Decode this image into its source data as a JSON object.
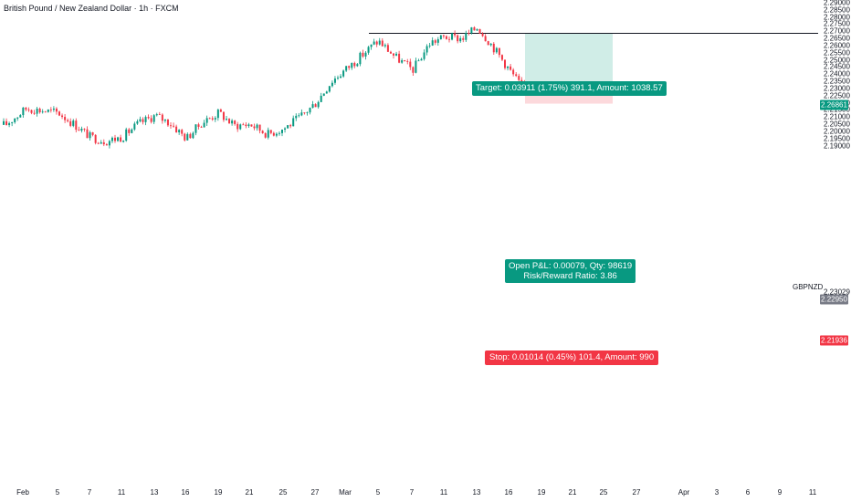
{
  "chart": {
    "title": "British Pound / New Zealand Dollar · 1h · FXCM",
    "symbol": "GBPNZD"
  },
  "colors": {
    "up": "#089981",
    "down": "#f23645",
    "target_zone": "#d0ede7",
    "stop_zone": "#fcd9dc",
    "target_label": "#089981",
    "stop_label": "#f23645",
    "current_price_tag": "#787b86",
    "line": "#131722"
  },
  "price_axis": {
    "ticks": [
      "2.29000",
      "2.28500",
      "2.28000",
      "2.27500",
      "2.27000",
      "2.26500",
      "2.26000",
      "2.25500",
      "2.25000",
      "2.24500",
      "2.24000",
      "2.23500",
      "2.23000",
      "2.22500",
      "2.22000",
      "2.21500",
      "2.21000",
      "2.20500",
      "2.20000",
      "2.19500",
      "2.19000"
    ],
    "tags": {
      "target_price": "2.26861",
      "last_price": "2.23029",
      "current_price": "2.22950",
      "stop_price": "2.21936"
    }
  },
  "time_axis": {
    "ticks": [
      "Feb",
      "5",
      "7",
      "11",
      "13",
      "16",
      "19",
      "21",
      "25",
      "27",
      "Mar",
      "5",
      "7",
      "11",
      "13",
      "16",
      "19",
      "21",
      "25",
      "27",
      "Apr",
      "3",
      "6",
      "9",
      "11"
    ]
  },
  "position": {
    "type": "long",
    "target_label": "Target: 0.03911 (1.75%) 391.1, Amount: 1038.57",
    "open_pl_label": "Open P&L: 0.00079, Qty: 98619",
    "risk_reward_label": "Risk/Reward Ratio: 3.86",
    "stop_label": "Stop: 0.01014 (0.45%) 101.4, Amount: 990",
    "entry": 2.2295,
    "target": 2.26861,
    "stop": 2.21936
  },
  "chart_data": {
    "type": "candlestick",
    "title": "British Pound / New Zealand Dollar · 1h · FXCM",
    "symbol": "GBPNZD",
    "ylim": [
      2.19,
      2.29
    ],
    "x_ticks": [
      "Feb",
      "5",
      "7",
      "11",
      "13",
      "16",
      "19",
      "21",
      "25",
      "27",
      "Mar",
      "5",
      "7",
      "11",
      "13",
      "16",
      "19",
      "21",
      "25",
      "27",
      "Apr",
      "3",
      "6",
      "9",
      "11"
    ],
    "horizontal_line": 2.26861,
    "close_path": [
      {
        "date": "Feb 3",
        "close": 2.2045
      },
      {
        "date": "Feb 4",
        "close": 2.216
      },
      {
        "date": "Feb 5",
        "close": 2.213
      },
      {
        "date": "Feb 6",
        "close": 2.2055
      },
      {
        "date": "Feb 7",
        "close": 2.196
      },
      {
        "date": "Feb 10",
        "close": 2.193
      },
      {
        "date": "Feb 11",
        "close": 2.196
      },
      {
        "date": "Feb 12",
        "close": 2.205
      },
      {
        "date": "Feb 13",
        "close": 2.211
      },
      {
        "date": "Feb 14",
        "close": 2.206
      },
      {
        "date": "Feb 17",
        "close": 2.195
      },
      {
        "date": "Feb 18",
        "close": 2.206
      },
      {
        "date": "Feb 19",
        "close": 2.213
      },
      {
        "date": "Feb 20",
        "close": 2.204
      },
      {
        "date": "Feb 21",
        "close": 2.205
      },
      {
        "date": "Feb 24",
        "close": 2.198
      },
      {
        "date": "Feb 25",
        "close": 2.202
      },
      {
        "date": "Feb 26",
        "close": 2.21
      },
      {
        "date": "Feb 27",
        "close": 2.22
      },
      {
        "date": "Feb 28",
        "close": 2.235
      },
      {
        "date": "Mar 3",
        "close": 2.25
      },
      {
        "date": "Mar 4",
        "close": 2.262
      },
      {
        "date": "Mar 5",
        "close": 2.263
      },
      {
        "date": "Mar 6",
        "close": 2.252
      },
      {
        "date": "Mar 7",
        "close": 2.243
      },
      {
        "date": "Mar 10",
        "close": 2.262
      },
      {
        "date": "Mar 11",
        "close": 2.266
      },
      {
        "date": "Mar 12",
        "close": 2.265
      },
      {
        "date": "Mar 13",
        "close": 2.273
      },
      {
        "date": "Mar 14",
        "close": 2.26
      },
      {
        "date": "Mar 17",
        "close": 2.2295
      }
    ]
  }
}
